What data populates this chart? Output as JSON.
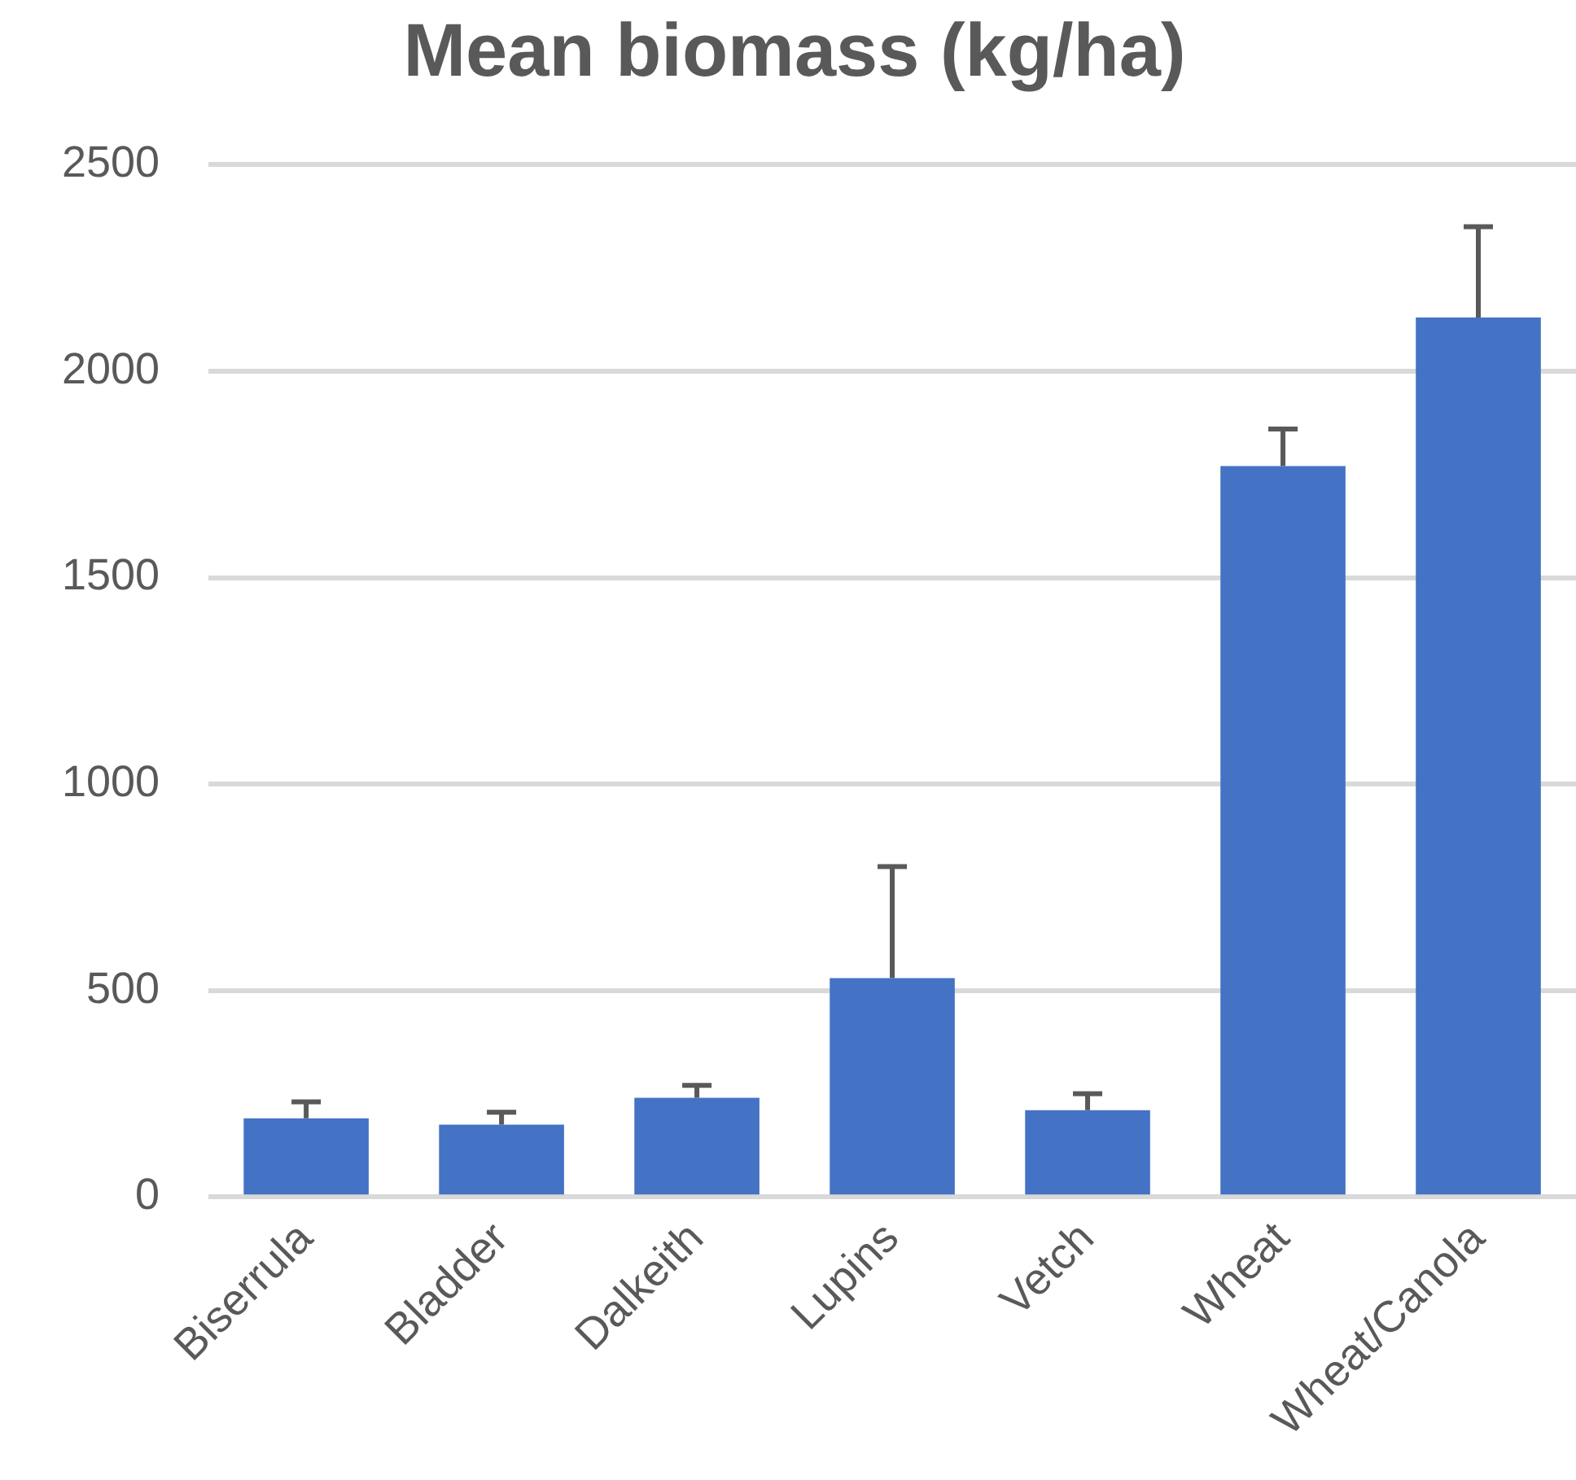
{
  "chart_data": {
    "type": "bar",
    "title": "Mean biomass (kg/ha)",
    "categories": [
      "Biserrula",
      "Bladder",
      "Dalkeith",
      "Lupins",
      "Vetch",
      "Wheat",
      "Wheat/Canola"
    ],
    "values": [
      190,
      175,
      240,
      530,
      210,
      1770,
      2130
    ],
    "errors": [
      [
        190,
        230
      ],
      [
        175,
        205
      ],
      [
        240,
        270
      ],
      [
        530,
        800
      ],
      [
        210,
        250
      ],
      [
        1770,
        1860
      ],
      [
        2130,
        2350
      ]
    ],
    "color": "#4472c4",
    "ylim": [
      0,
      2500
    ],
    "yticks": [
      0,
      500,
      1000,
      1500,
      2000,
      2500
    ],
    "grid": "y",
    "legend": false
  }
}
